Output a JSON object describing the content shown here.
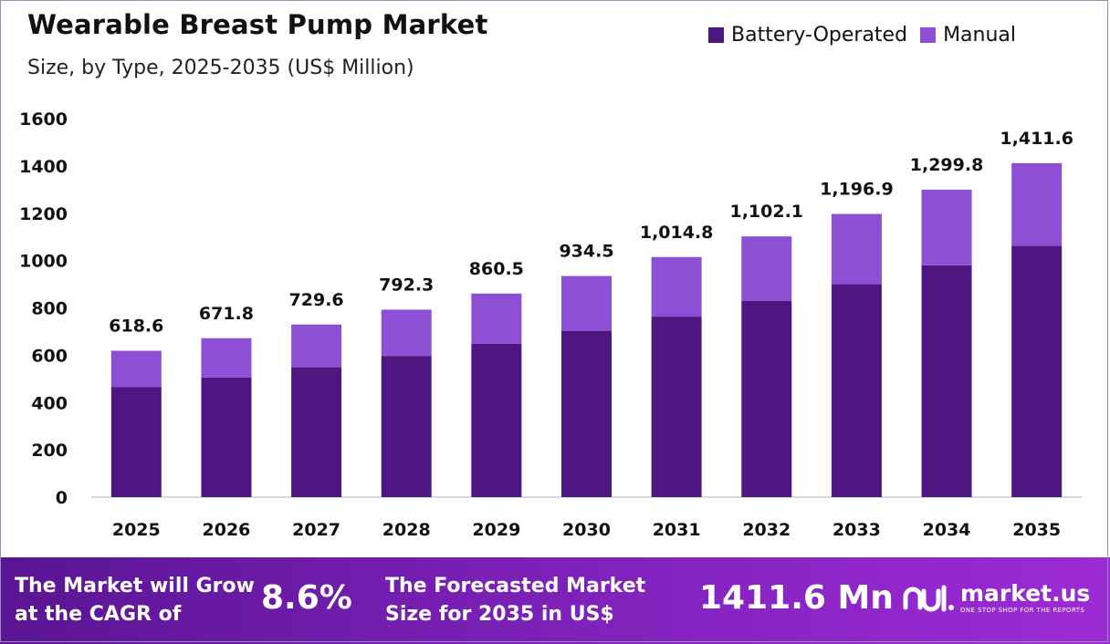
{
  "title": "Wearable Breast Pump Market",
  "subtitle": "Size, by Type, 2025-2035 (US$ Million)",
  "colors": {
    "battery": "#4e1681",
    "manual": "#8d4fd3",
    "axis": "#cccccc"
  },
  "legend": [
    {
      "label": "Battery-Operated",
      "color": "#4e1681"
    },
    {
      "label": "Manual",
      "color": "#8d4fd3"
    }
  ],
  "chart_data": {
    "type": "bar",
    "stacked": true,
    "categories": [
      "2025",
      "2026",
      "2027",
      "2028",
      "2029",
      "2030",
      "2031",
      "2032",
      "2033",
      "2034",
      "2035"
    ],
    "series": [
      {
        "name": "Battery-Operated",
        "values": [
          466,
          506,
          549,
          597,
          648,
          703,
          763,
          830,
          900,
          980,
          1063
        ]
      },
      {
        "name": "Manual",
        "values": [
          152.6,
          165.8,
          180.6,
          195.3,
          212.5,
          231.5,
          251.8,
          272.1,
          296.9,
          319.8,
          348.6
        ]
      }
    ],
    "totals": [
      "618.6",
      "671.8",
      "729.6",
      "792.3",
      "860.5",
      "934.5",
      "1,014.8",
      "1,102.1",
      "1,196.9",
      "1,299.8",
      "1,411.6"
    ],
    "yticks": [
      "0",
      "200",
      "400",
      "600",
      "800",
      "1000",
      "1200",
      "1400",
      "1600"
    ],
    "ylim": [
      0,
      1600
    ],
    "grid": false,
    "legend_position": "top-right"
  },
  "footer": {
    "cagr_text_line1": "The Market will Grow",
    "cagr_text_line2": "at the CAGR of",
    "cagr_value": "8.6%",
    "forecast_text_line1": "The Forecasted Market",
    "forecast_text_line2": "Size for 2035 in US$",
    "forecast_value": "1411.6 Mn",
    "logo_name": "market.us",
    "logo_tagline": "ONE STOP SHOP FOR THE REPORTS"
  }
}
